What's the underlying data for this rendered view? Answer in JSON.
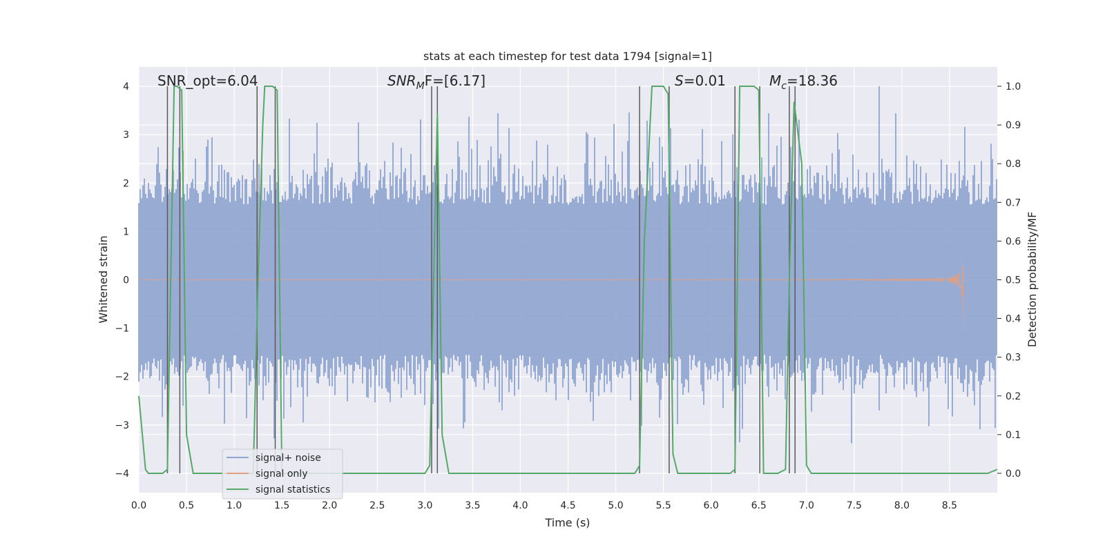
{
  "chart_data": {
    "type": "line",
    "title": "stats at each timestep for test data 1794 [signal=1]",
    "xlabel": "Time (s)",
    "ylabel": "Whitened strain",
    "y2label": "Detection probability/MF",
    "xlim": [
      0.0,
      9.0
    ],
    "ylim": [
      -4.4,
      4.4
    ],
    "y2lim": [
      -0.05,
      1.05
    ],
    "xticks": [
      "0.0",
      "0.5",
      "1.0",
      "1.5",
      "2.0",
      "2.5",
      "3.0",
      "3.5",
      "4.0",
      "4.5",
      "5.0",
      "5.5",
      "6.0",
      "6.5",
      "7.0",
      "7.5",
      "8.0",
      "8.5"
    ],
    "yticks": [
      "4",
      "3",
      "2",
      "1",
      "0",
      "−1",
      "−2",
      "−3",
      "−4"
    ],
    "y2ticks": [
      "1.0",
      "0.9",
      "0.8",
      "0.7",
      "0.6",
      "0.5",
      "0.4",
      "0.3",
      "0.2",
      "0.1",
      "0.0"
    ],
    "grid": true,
    "legend_position": "lower-left",
    "annotations": {
      "snr_opt": "SNR_opt=6.04",
      "snr_mf_main": "SNR",
      "snr_mf_sub": "M",
      "snr_mf_rest": "F=[6.17]",
      "s_italic": "S",
      "s_rest": "=0.01",
      "mc_main": "M",
      "mc_sub": "c",
      "mc_rest": "=18.36"
    },
    "series": [
      {
        "name": "signal+ noise",
        "color": "#8fa4cf",
        "description_values": "whitened strain noise, amplitude roughly within [-3.5, 4]"
      },
      {
        "name": "signal only",
        "color": "#e1a083",
        "chirp_end_time": 8.65,
        "chirp_peak_amplitude": 1.0
      },
      {
        "name": "signal statistics",
        "color": "#55a868",
        "x": [
          0.0,
          0.07,
          0.1,
          0.25,
          0.3,
          0.37,
          0.4,
          0.45,
          0.5,
          0.57,
          0.6,
          0.9,
          1.2,
          1.25,
          1.3,
          1.32,
          1.4,
          1.45,
          1.5,
          1.55,
          2.0,
          3.0,
          3.05,
          3.1,
          3.13,
          3.18,
          3.25,
          3.3,
          4.0,
          5.0,
          5.2,
          5.25,
          5.3,
          5.38,
          5.42,
          5.5,
          5.55,
          5.6,
          5.65,
          5.7,
          6.0,
          6.2,
          6.25,
          6.28,
          6.3,
          6.35,
          6.45,
          6.5,
          6.55,
          6.6,
          6.7,
          6.78,
          6.82,
          6.87,
          6.95,
          7.0,
          7.05,
          8.0,
          8.9,
          9.0
        ],
        "y": [
          0.2,
          0.01,
          0.0,
          0.0,
          0.01,
          1.0,
          1.0,
          0.99,
          0.1,
          0.0,
          0.0,
          0.0,
          0.0,
          0.5,
          0.9,
          1.0,
          1.0,
          0.99,
          0.0,
          0.0,
          0.0,
          0.0,
          0.02,
          0.6,
          0.93,
          0.1,
          0.0,
          0.0,
          0.0,
          0.0,
          0.0,
          0.02,
          0.6,
          1.0,
          1.0,
          1.0,
          0.98,
          0.05,
          0.0,
          0.0,
          0.0,
          0.0,
          0.01,
          0.6,
          1.0,
          1.0,
          1.0,
          0.99,
          0.0,
          0.0,
          0.0,
          0.01,
          0.5,
          0.96,
          0.8,
          0.02,
          0.0,
          0.0,
          0.0,
          0.01
        ]
      }
    ],
    "vertical_lines_x": [
      0.3,
      0.43,
      1.24,
      1.43,
      3.07,
      3.13,
      5.25,
      5.56,
      6.25,
      6.51,
      6.82,
      6.88
    ],
    "colors": {
      "plot_background": "#eaeaf2",
      "grid": "#ffffff",
      "vline": "#595959",
      "text": "#262626"
    }
  }
}
